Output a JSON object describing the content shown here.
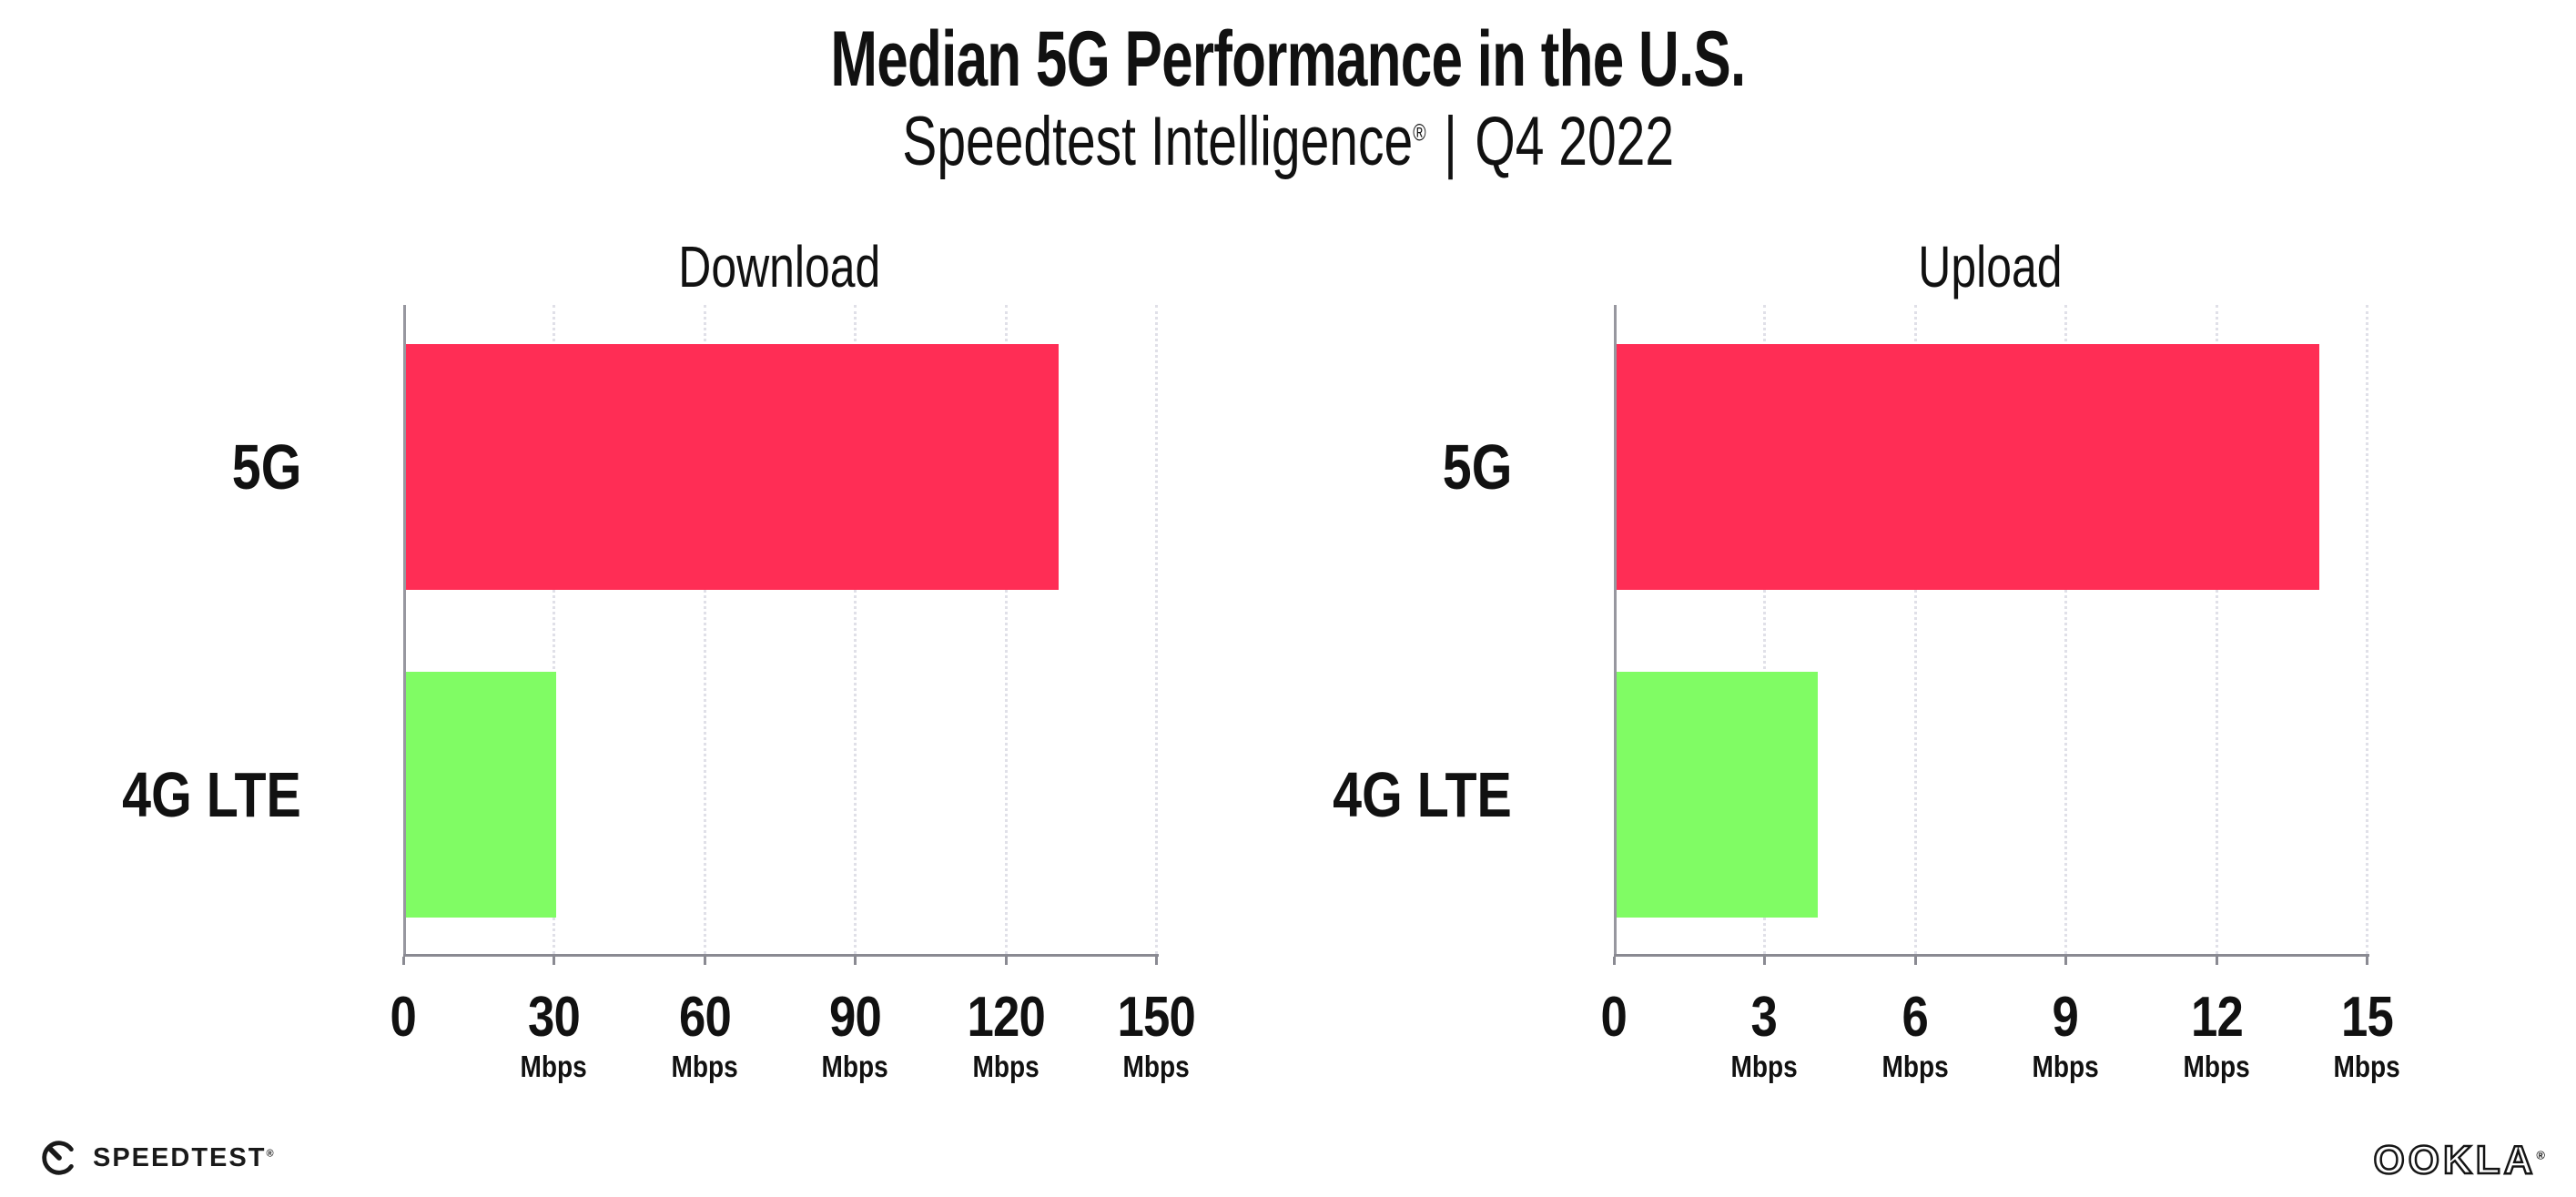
{
  "header": {
    "title": "Median 5G Performance in the U.S.",
    "subtitle_brand": "Speedtest Intelligence",
    "subtitle_reg": "®",
    "subtitle_separator": "|",
    "subtitle_period": "Q4 2022"
  },
  "chart_data": [
    {
      "type": "bar",
      "orientation": "horizontal",
      "title": "Download",
      "categories": [
        "5G",
        "4G LTE"
      ],
      "values": [
        130,
        30
      ],
      "xlabel": "",
      "ylabel": "",
      "xlim": [
        0,
        150
      ],
      "xticks": [
        0,
        30,
        60,
        90,
        120,
        150
      ],
      "tick_unit_label": "Mbps",
      "bar_colors": [
        "#FF2D55",
        "#80FC64"
      ],
      "gridlines": "dotted-vertical",
      "legend": "none"
    },
    {
      "type": "bar",
      "orientation": "horizontal",
      "title": "Upload",
      "categories": [
        "5G",
        "4G LTE"
      ],
      "values": [
        14,
        4
      ],
      "xlabel": "",
      "ylabel": "",
      "xlim": [
        0,
        15
      ],
      "xticks": [
        0,
        3,
        6,
        9,
        12,
        15
      ],
      "tick_unit_label": "Mbps",
      "bar_colors": [
        "#FF2D55",
        "#80FC64"
      ],
      "gridlines": "dotted-vertical",
      "legend": "none"
    }
  ],
  "footer": {
    "speedtest_logo_text": "SPEEDTEST",
    "speedtest_reg": "®",
    "ookla_logo_text": "OOKLA",
    "ookla_reg": "®"
  },
  "colors": {
    "bar_5g": "#FF2D55",
    "bar_4g": "#80FC64",
    "axis": "#8A8A92",
    "spine": "#97979F",
    "gridline": "#E0E0E8",
    "text": "#111111"
  }
}
